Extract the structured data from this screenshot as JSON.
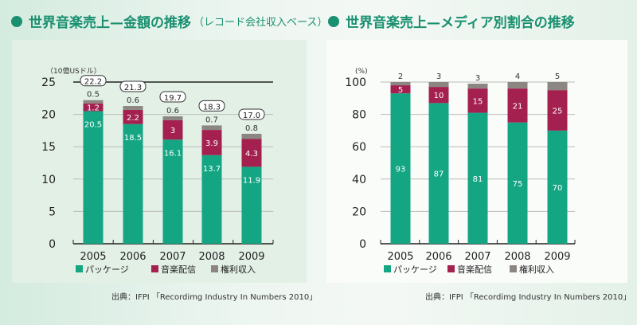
{
  "chart_data": [
    {
      "type": "bar",
      "stacked": true,
      "title": "世界音楽売上—金額の推移",
      "subtitle": "（レコード会社収入ベース）",
      "ylabel": "（10億USドル）",
      "ylim": [
        0,
        25
      ],
      "yticks": [
        0,
        5,
        10,
        15,
        20,
        25
      ],
      "grid": true,
      "categories": [
        "2005",
        "2006",
        "2007",
        "2008",
        "2009"
      ],
      "series": [
        {
          "name": "パッケージ",
          "color": "#14a683",
          "values": [
            20.5,
            18.5,
            16.1,
            13.7,
            11.9
          ]
        },
        {
          "name": "音楽配信",
          "color": "#a3204f",
          "values": [
            1.2,
            2.2,
            3.0,
            3.9,
            4.3
          ]
        },
        {
          "name": "権利収入",
          "color": "#8c8682",
          "values": [
            0.5,
            0.6,
            0.6,
            0.7,
            0.8
          ]
        }
      ],
      "totals": [
        "22.2",
        "21.3",
        "19.7",
        "18.3",
        "17.0"
      ],
      "legend": "bottom",
      "source": "出典：IFPI 「Recordimg Industry In Numbers 2010」"
    },
    {
      "type": "bar",
      "stacked": true,
      "title": "世界音楽売上—メディア別割合の推移",
      "ylabel": "(%)",
      "ylim": [
        0,
        100
      ],
      "yticks": [
        0,
        20,
        40,
        60,
        80,
        100
      ],
      "grid": true,
      "categories": [
        "2005",
        "2006",
        "2007",
        "2008",
        "2009"
      ],
      "series": [
        {
          "name": "パッケージ",
          "color": "#14a683",
          "values": [
            93,
            87,
            81,
            75,
            70
          ]
        },
        {
          "name": "音楽配信",
          "color": "#a3204f",
          "values": [
            5,
            10,
            15,
            21,
            25
          ]
        },
        {
          "name": "権利収入",
          "color": "#8c8682",
          "values": [
            2,
            3,
            3,
            4,
            5
          ]
        }
      ],
      "legend": "bottom",
      "source": "出典：IFPI 「Recordimg Industry In Numbers 2010」"
    }
  ]
}
